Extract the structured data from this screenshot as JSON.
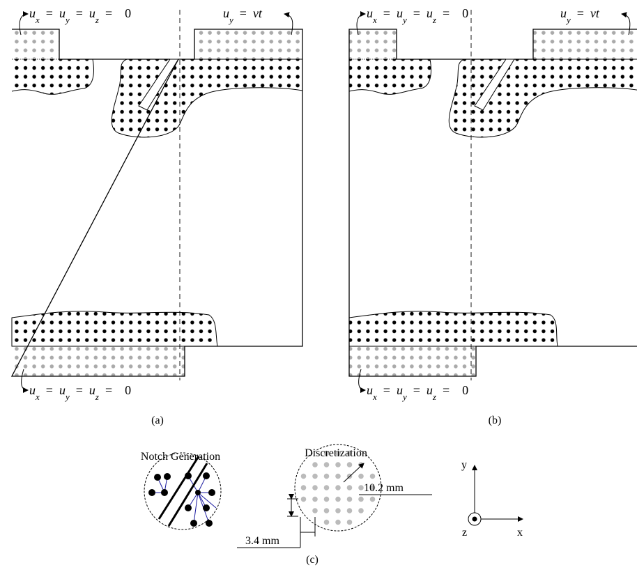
{
  "panel_a": {
    "caption": "(a)",
    "bc_top_left": {
      "parts": [
        {
          "t": "u",
          "sub": "x"
        },
        {
          "t": "="
        },
        {
          "t": "u",
          "sub": "y"
        },
        {
          "t": "="
        },
        {
          "t": "u",
          "sub": "z"
        },
        {
          "t": "="
        },
        {
          "t": "0"
        }
      ]
    },
    "bc_top_right": {
      "parts": [
        {
          "t": "u",
          "sub": "y"
        },
        {
          "t": "="
        },
        {
          "t": "vt"
        }
      ]
    },
    "bc_bottom": {
      "parts": [
        {
          "t": "u",
          "sub": "x"
        },
        {
          "t": "="
        },
        {
          "t": "u",
          "sub": "y"
        },
        {
          "t": "="
        },
        {
          "t": "u",
          "sub": "z"
        },
        {
          "t": "="
        },
        {
          "t": "0"
        }
      ]
    }
  },
  "panel_b": {
    "caption": "(b)",
    "bc_top_left": {
      "parts": [
        {
          "t": "u",
          "sub": "x"
        },
        {
          "t": "="
        },
        {
          "t": "u",
          "sub": "y"
        },
        {
          "t": "="
        },
        {
          "t": "u",
          "sub": "z"
        },
        {
          "t": "="
        },
        {
          "t": "0"
        }
      ]
    },
    "bc_top_right": {
      "parts": [
        {
          "t": "u",
          "sub": "y"
        },
        {
          "t": "="
        },
        {
          "t": "vt"
        }
      ]
    },
    "bc_bottom": {
      "parts": [
        {
          "t": "u",
          "sub": "x"
        },
        {
          "t": "="
        },
        {
          "t": "u",
          "sub": "y"
        },
        {
          "t": "="
        },
        {
          "t": "u",
          "sub": "z"
        },
        {
          "t": "="
        },
        {
          "t": "0"
        }
      ]
    }
  },
  "panel_c": {
    "caption": "(c)",
    "notch_title": "Notch Generation",
    "discretization_title": "Discretization",
    "radius_label": "10.2 mm",
    "spacing_label": "3.4 mm",
    "axes": {
      "y": "y",
      "z": "z",
      "x": "x"
    }
  }
}
